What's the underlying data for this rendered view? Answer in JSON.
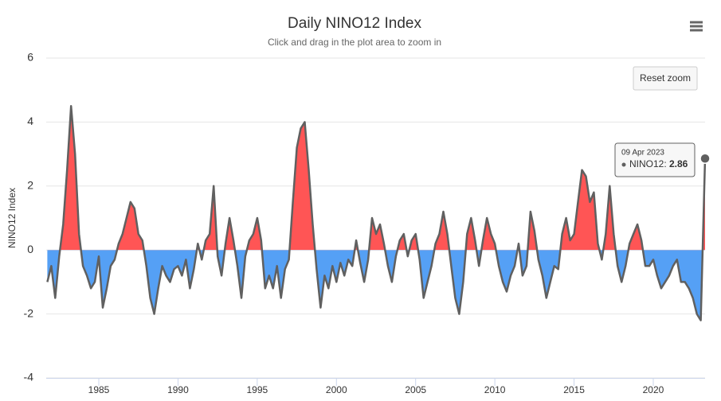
{
  "chart_data": {
    "type": "area",
    "title": "Daily NINO12 Index",
    "subtitle": "Click and drag in the plot area to zoom in",
    "y_label": "NINO12 Index",
    "reset_button": "Reset zoom",
    "tooltip": {
      "date": "09 Apr 2023",
      "series": "NINO12:",
      "value": "2.86"
    },
    "xlim": [
      1981.68,
      2023.27
    ],
    "xticks": [
      1985,
      1990,
      1995,
      2000,
      2005,
      2010,
      2015,
      2020
    ],
    "ylim": [
      -4,
      6
    ],
    "yticks": [
      -4,
      -2,
      0,
      2,
      4,
      6
    ],
    "grid": true,
    "threshold": 0,
    "positive_color": "#ff5555",
    "negative_color": "#55a0f5",
    "x": [
      1981.75,
      1982,
      1982.25,
      1982.5,
      1982.75,
      1983,
      1983.25,
      1983.5,
      1983.75,
      1984,
      1984.25,
      1984.5,
      1984.75,
      1985,
      1985.25,
      1985.5,
      1985.75,
      1986,
      1986.25,
      1986.5,
      1986.75,
      1987,
      1987.25,
      1987.5,
      1987.75,
      1988,
      1988.25,
      1988.5,
      1988.75,
      1989,
      1989.25,
      1989.5,
      1989.75,
      1990,
      1990.25,
      1990.5,
      1990.75,
      1991,
      1991.25,
      1991.5,
      1991.75,
      1992,
      1992.25,
      1992.5,
      1992.75,
      1993,
      1993.25,
      1993.5,
      1993.75,
      1994,
      1994.25,
      1994.5,
      1994.75,
      1995,
      1995.25,
      1995.5,
      1995.75,
      1996,
      1996.25,
      1996.5,
      1996.75,
      1997,
      1997.25,
      1997.5,
      1997.75,
      1998,
      1998.25,
      1998.5,
      1998.75,
      1999,
      1999.25,
      1999.5,
      1999.75,
      2000,
      2000.25,
      2000.5,
      2000.75,
      2001,
      2001.25,
      2001.5,
      2001.75,
      2002,
      2002.25,
      2002.5,
      2002.75,
      2003,
      2003.25,
      2003.5,
      2003.75,
      2004,
      2004.25,
      2004.5,
      2004.75,
      2005,
      2005.25,
      2005.5,
      2005.75,
      2006,
      2006.25,
      2006.5,
      2006.75,
      2007,
      2007.25,
      2007.5,
      2007.75,
      2008,
      2008.25,
      2008.5,
      2008.75,
      2009,
      2009.25,
      2009.5,
      2009.75,
      2010,
      2010.25,
      2010.5,
      2010.75,
      2011,
      2011.25,
      2011.5,
      2011.75,
      2012,
      2012.25,
      2012.5,
      2012.75,
      2013,
      2013.25,
      2013.5,
      2013.75,
      2014,
      2014.25,
      2014.5,
      2014.75,
      2015,
      2015.25,
      2015.5,
      2015.75,
      2016,
      2016.25,
      2016.5,
      2016.75,
      2017,
      2017.25,
      2017.5,
      2017.75,
      2018,
      2018.25,
      2018.5,
      2018.75,
      2019,
      2019.25,
      2019.5,
      2019.75,
      2020,
      2020.25,
      2020.5,
      2020.75,
      2021,
      2021.25,
      2021.5,
      2021.75,
      2022,
      2022.25,
      2022.5,
      2022.75,
      2023,
      2023.27
    ],
    "series": [
      {
        "name": "NINO12",
        "color": "#606060",
        "values": [
          -1.0,
          -0.5,
          -1.5,
          -0.2,
          0.8,
          2.5,
          4.5,
          3.0,
          0.5,
          -0.5,
          -0.8,
          -1.2,
          -1.0,
          -0.2,
          -1.8,
          -1.2,
          -0.5,
          -0.3,
          0.2,
          0.5,
          1.0,
          1.5,
          1.3,
          0.5,
          0.3,
          -0.5,
          -1.5,
          -2.0,
          -1.2,
          -0.5,
          -0.8,
          -1.0,
          -0.6,
          -0.5,
          -0.8,
          -0.3,
          -1.2,
          -0.6,
          0.2,
          -0.3,
          0.3,
          0.5,
          2.0,
          -0.2,
          -0.8,
          0.2,
          1.0,
          0.3,
          -0.5,
          -1.5,
          -0.2,
          0.3,
          0.5,
          1.0,
          0.3,
          -1.2,
          -0.8,
          -1.2,
          -0.5,
          -1.5,
          -0.6,
          -0.3,
          1.5,
          3.2,
          3.8,
          4.0,
          2.5,
          0.8,
          -0.6,
          -1.8,
          -0.8,
          -1.2,
          -0.5,
          -1.0,
          -0.4,
          -0.8,
          -0.3,
          -0.5,
          0.3,
          -0.4,
          -1.0,
          -0.3,
          1.0,
          0.5,
          0.8,
          0.2,
          -0.5,
          -1.0,
          -0.2,
          0.3,
          0.5,
          -0.2,
          0.3,
          0.5,
          -0.3,
          -1.5,
          -1.0,
          -0.5,
          0.2,
          0.5,
          1.2,
          0.5,
          -0.5,
          -1.5,
          -2.0,
          -1.0,
          0.5,
          1.0,
          0.3,
          -0.5,
          0.3,
          1.0,
          0.5,
          0.2,
          -0.5,
          -1.0,
          -1.3,
          -0.8,
          -0.5,
          0.2,
          -0.8,
          -0.5,
          1.2,
          0.6,
          -0.3,
          -0.8,
          -1.5,
          -1.0,
          -0.5,
          -0.6,
          0.5,
          1.0,
          0.3,
          0.5,
          1.5,
          2.5,
          2.3,
          1.5,
          1.8,
          0.2,
          -0.3,
          0.5,
          2.0,
          0.5,
          -0.5,
          -1.0,
          -0.5,
          0.2,
          0.5,
          0.8,
          0.3,
          -0.5,
          -0.5,
          -0.3,
          -0.8,
          -1.2,
          -1.0,
          -0.8,
          -0.5,
          -0.3,
          -1.0,
          -1.0,
          -1.2,
          -1.5,
          -2.0,
          -2.2,
          2.86
        ]
      }
    ]
  }
}
